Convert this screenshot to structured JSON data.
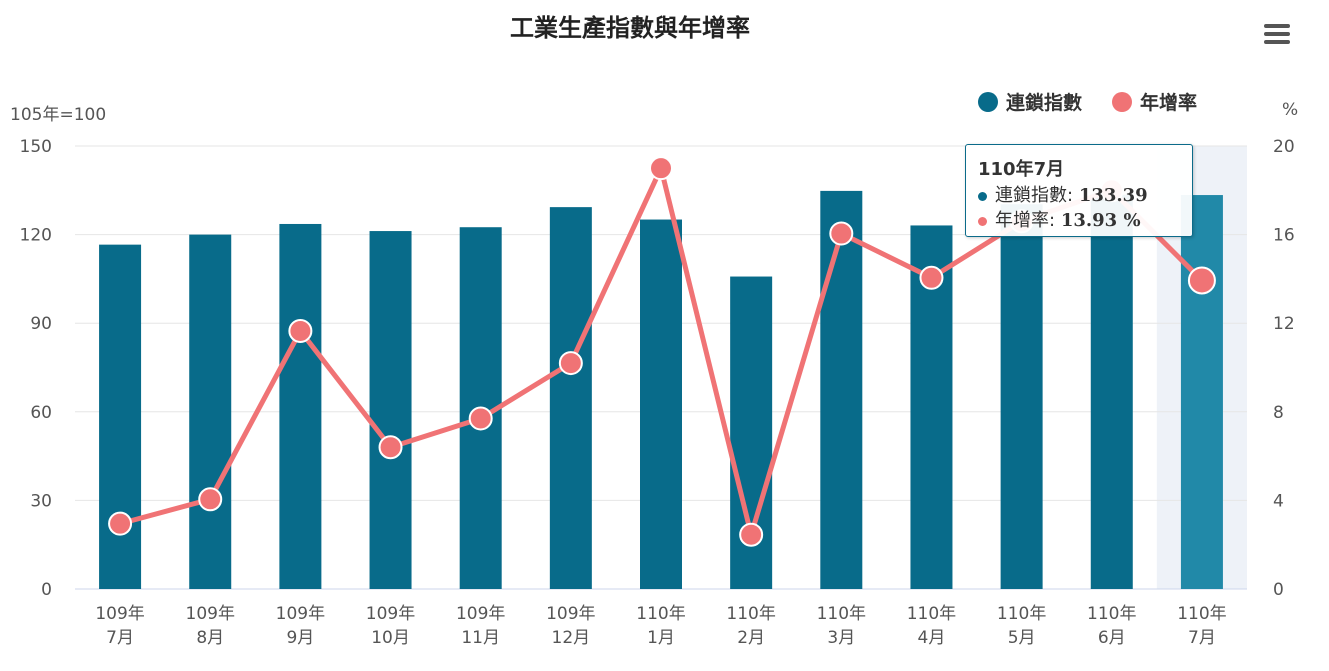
{
  "title": "工業生產指數與年增率",
  "menu_icon": "hamburger-menu-icon",
  "y_left_unit": "105年=100",
  "y_right_unit": "%",
  "legend": [
    {
      "label": "連鎖指數",
      "color": "#086b8a"
    },
    {
      "label": "年增率",
      "color": "#f07375"
    }
  ],
  "tooltip": {
    "header": "110年7月",
    "row1_label": "連鎖指數:",
    "row1_value": "133.39",
    "row2_label": "年增率:",
    "row2_value": "13.93 %"
  },
  "chart_data": {
    "type": "bar",
    "categories": [
      [
        "109年",
        "7月"
      ],
      [
        "109年",
        "8月"
      ],
      [
        "109年",
        "9月"
      ],
      [
        "109年",
        "10月"
      ],
      [
        "109年",
        "11月"
      ],
      [
        "109年",
        "12月"
      ],
      [
        "110年",
        "1月"
      ],
      [
        "110年",
        "2月"
      ],
      [
        "110年",
        "3月"
      ],
      [
        "110年",
        "4月"
      ],
      [
        "110年",
        "5月"
      ],
      [
        "110年",
        "6月"
      ],
      [
        "110年",
        "7月"
      ]
    ],
    "series": [
      {
        "name": "連鎖指數",
        "type": "bar",
        "axis": "left",
        "color": "#086b8a",
        "values": [
          116.6,
          120.0,
          123.6,
          121.2,
          122.5,
          129.3,
          125.1,
          105.8,
          134.8,
          123.1,
          130.3,
          133.5,
          133.39
        ]
      },
      {
        "name": "年增率",
        "type": "line",
        "axis": "right",
        "color": "#f07375",
        "values": [
          2.95,
          4.05,
          11.65,
          6.4,
          7.7,
          10.2,
          19.0,
          2.45,
          16.05,
          14.05,
          16.6,
          18.0,
          13.93
        ]
      }
    ],
    "y_left": {
      "min": 0,
      "max": 150,
      "ticks": [
        0,
        30,
        60,
        90,
        120,
        150
      ]
    },
    "y_right": {
      "min": 0,
      "max": 20,
      "ticks": [
        0,
        4,
        8,
        12,
        16,
        20
      ]
    },
    "highlighted_index": 12,
    "grid": true,
    "legend_position": "top-right"
  }
}
